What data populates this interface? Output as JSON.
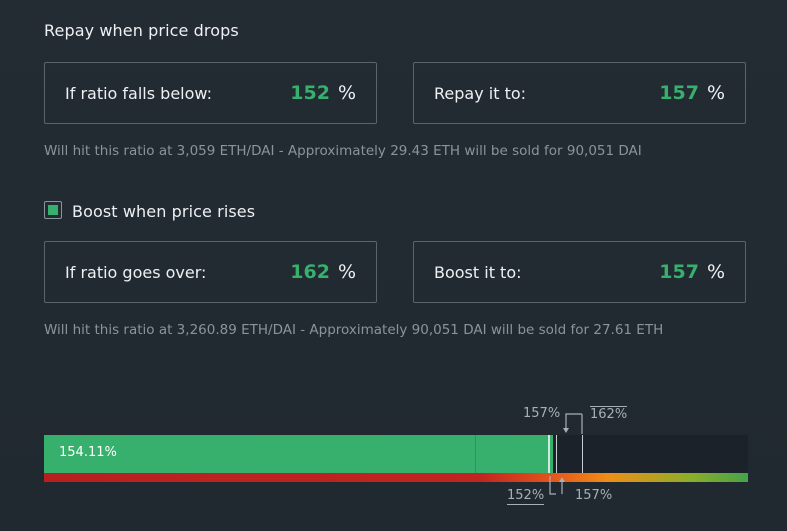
{
  "repay": {
    "title": "Repay when price drops",
    "trigger_label": "If ratio falls below:",
    "trigger_value": "152",
    "target_label": "Repay it to:",
    "target_value": "157",
    "unit": "%",
    "hint": "Will hit this ratio at 3,059 ETH/DAI - Approximately 29.43 ETH will be sold for 90,051 DAI"
  },
  "boost": {
    "title": "Boost when price rises",
    "enabled": true,
    "trigger_label": "If ratio goes over:",
    "trigger_value": "162",
    "target_label": "Boost it to:",
    "target_value": "157",
    "unit": "%",
    "hint": "Will hit this ratio at 3,260.89 ETH/DAI - Approximately 90,051 DAI will be sold for 27.61 ETH"
  },
  "ratio_bar": {
    "current_label": "154.11%",
    "current_fraction": 0.72,
    "marker_boost_target_top": "157%",
    "marker_boost_trigger_top": "162%",
    "marker_repay_trigger_bottom": "152%",
    "marker_repay_target_bottom": "157%"
  },
  "colors": {
    "accent_green": "#37b06e",
    "background": "#222a32",
    "border": "#5a646d",
    "muted_text": "#8a949c"
  }
}
